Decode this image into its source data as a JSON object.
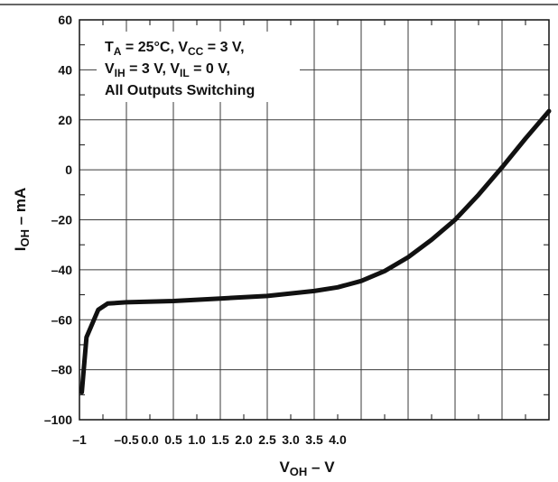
{
  "chart_data": {
    "type": "line",
    "title": "",
    "annotation": {
      "line1": {
        "t": "T",
        "t_sub": "A",
        "mid": " = 25°C, V",
        "v_sub": "CC",
        "end": " = 3 V,"
      },
      "line2": {
        "v1": "V",
        "v1_sub": "IH",
        "mid": " = 3 V, V",
        "v2_sub": "IL",
        "end": " = 0 V,"
      },
      "line3": "All Outputs Switching"
    },
    "xlabel": {
      "main": "V",
      "sub": "OH",
      "unit": " – V"
    },
    "ylabel": {
      "main": "I",
      "sub": "OH",
      "unit": " – mA"
    },
    "x_tick_labels": [
      "–1",
      "–0.5",
      "0.0",
      "0.5",
      "1.0",
      "1.5",
      "2.0",
      "2.5",
      "3.0",
      "3.5",
      "4.0"
    ],
    "y_ticks": [
      60,
      40,
      20,
      0,
      -20,
      -40,
      -60,
      -80,
      -100
    ],
    "y_tick_labels": [
      "60",
      "40",
      "20",
      "0",
      "–20",
      "–40",
      "–60",
      "–80",
      "–100"
    ],
    "ylim": [
      -100,
      60
    ],
    "xlim_divisions": 20,
    "grid": true,
    "series": [
      {
        "color": "#111111",
        "x_div": [
          0.1,
          0.3,
          0.8,
          1.2,
          2.0,
          4.0,
          6.0,
          8.0,
          10.0,
          11.0,
          12.0,
          13.0,
          14.0,
          15.0,
          16.0,
          17.0,
          18.0,
          19.0,
          20.0
        ],
        "y": [
          -89,
          -67,
          -56,
          -53.5,
          -53,
          -52.5,
          -51.5,
          -50.5,
          -48.5,
          -47,
          -44.5,
          -40.5,
          -35,
          -28,
          -20,
          -10,
          1,
          12.5,
          23.5
        ]
      }
    ]
  }
}
